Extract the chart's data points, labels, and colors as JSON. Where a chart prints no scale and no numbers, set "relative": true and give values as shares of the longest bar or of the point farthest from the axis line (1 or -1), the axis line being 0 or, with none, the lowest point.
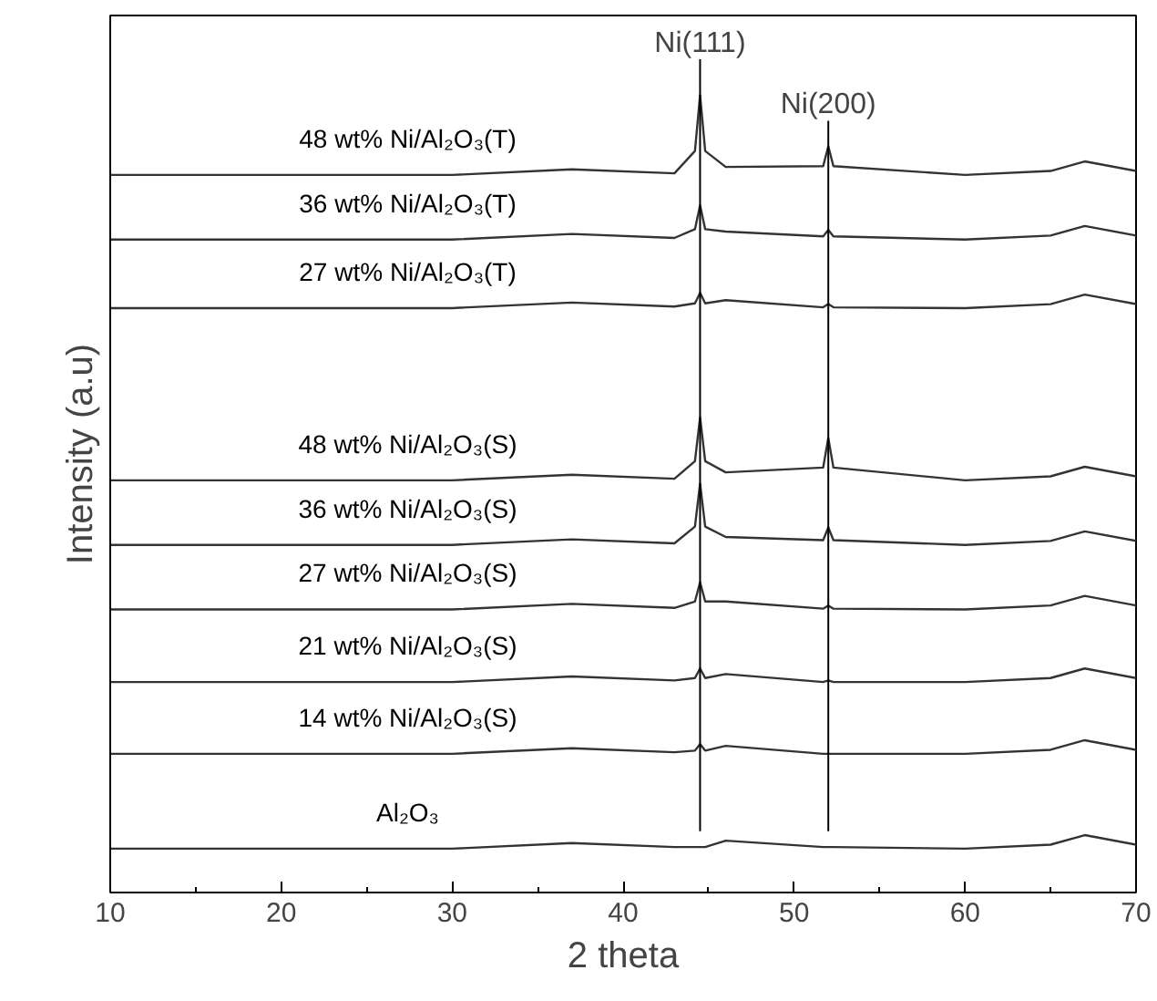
{
  "chart_data": {
    "type": "line",
    "relative": true,
    "xlabel": "2 theta",
    "ylabel": "Intensity (a.u)",
    "x": [
      10,
      30,
      37,
      43,
      44.2,
      44.5,
      44.8,
      46,
      51.7,
      52,
      52.3,
      60,
      65,
      67,
      70
    ],
    "xlim": [
      10,
      70
    ],
    "xticks": [
      10,
      20,
      30,
      40,
      50,
      60,
      70
    ],
    "grid": false,
    "marker": "none",
    "line_style": "solid",
    "series": [
      {
        "name": "48 wt% Ni/Al₂O₃(T)",
        "color": "#333333",
        "values": [
          0.9,
          0.9,
          0.907,
          0.902,
          0.93,
          1.0,
          0.93,
          0.91,
          0.911,
          0.936,
          0.911,
          0.9,
          0.905,
          0.917,
          0.905
        ]
      },
      {
        "name": "36 wt% Ni/Al₂O₃(T)",
        "color": "#333333",
        "values": [
          0.819,
          0.819,
          0.826,
          0.821,
          0.832,
          0.862,
          0.832,
          0.829,
          0.823,
          0.831,
          0.823,
          0.819,
          0.824,
          0.836,
          0.824
        ]
      },
      {
        "name": "27 wt% Ni/Al₂O₃(T)",
        "color": "#333333",
        "values": [
          0.733,
          0.733,
          0.74,
          0.735,
          0.739,
          0.752,
          0.739,
          0.743,
          0.734,
          0.738,
          0.734,
          0.733,
          0.738,
          0.75,
          0.738
        ]
      },
      {
        "name": "48 wt% Ni/Al₂O₃(S)",
        "color": "#333333",
        "values": [
          0.517,
          0.517,
          0.524,
          0.519,
          0.541,
          0.596,
          0.541,
          0.527,
          0.533,
          0.57,
          0.533,
          0.517,
          0.522,
          0.534,
          0.522
        ]
      },
      {
        "name": "36 wt% Ni/Al₂O₃(S)",
        "color": "#333333",
        "values": [
          0.436,
          0.436,
          0.443,
          0.438,
          0.459,
          0.513,
          0.459,
          0.446,
          0.442,
          0.458,
          0.442,
          0.436,
          0.441,
          0.453,
          0.441
        ]
      },
      {
        "name": "27 wt% Ni/Al₂O₃(S)",
        "color": "#333333",
        "values": [
          0.355,
          0.355,
          0.362,
          0.357,
          0.365,
          0.389,
          0.365,
          0.365,
          0.356,
          0.36,
          0.356,
          0.355,
          0.36,
          0.372,
          0.36
        ]
      },
      {
        "name": "21 wt% Ni/Al₂O₃(S)",
        "color": "#333333",
        "values": [
          0.264,
          0.264,
          0.271,
          0.266,
          0.269,
          0.281,
          0.269,
          0.274,
          0.264,
          0.266,
          0.264,
          0.264,
          0.269,
          0.281,
          0.269
        ]
      },
      {
        "name": "14 wt% Ni/Al₂O₃(S)",
        "color": "#333333",
        "values": [
          0.174,
          0.174,
          0.181,
          0.176,
          0.178,
          0.186,
          0.178,
          0.184,
          0.174,
          0.174,
          0.174,
          0.174,
          0.179,
          0.191,
          0.179
        ]
      },
      {
        "name": "Al₂O₃",
        "color": "#333333",
        "values": [
          0.055,
          0.055,
          0.062,
          0.057,
          0.057,
          0.057,
          0.057,
          0.065,
          0.057,
          0.057,
          0.057,
          0.055,
          0.06,
          0.072,
          0.06
        ]
      }
    ],
    "ref_lines": [
      {
        "axis": "x",
        "value": 44.5,
        "label": "Ni(111)",
        "color": "#000000"
      },
      {
        "axis": "x",
        "value": 52,
        "label": "Ni(200)",
        "color": "#000000"
      }
    ]
  }
}
